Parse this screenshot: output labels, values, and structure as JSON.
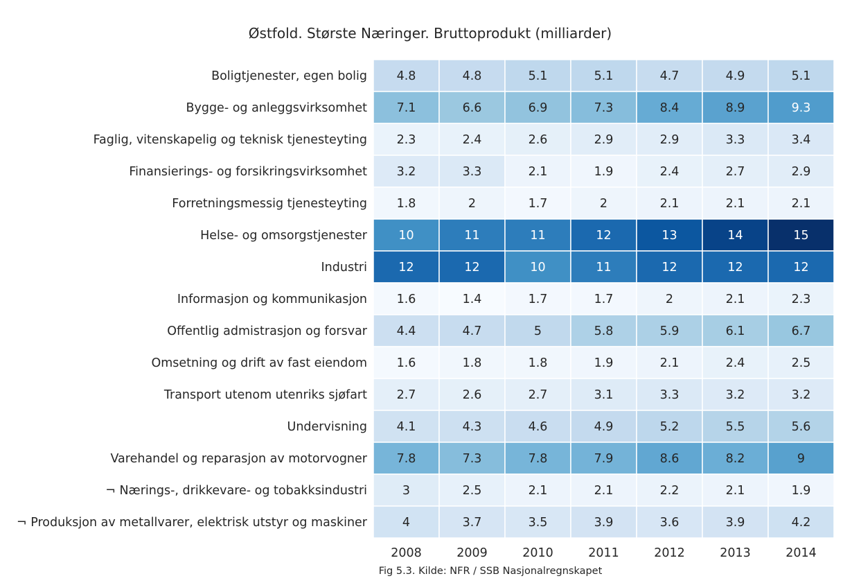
{
  "chart_data": {
    "type": "heatmap",
    "title": "Østfold. Største Næringer. Bruttoprodukt (milliarder)",
    "caption": "Fig 5.3. Kilde: NFR / SSB Nasjonalregnskapet",
    "colormap": "Blues",
    "vmin": 1.4,
    "vmax": 15,
    "columns": [
      "2008",
      "2009",
      "2010",
      "2011",
      "2012",
      "2013",
      "2014"
    ],
    "rows": [
      "Boligtjenester, egen bolig",
      "Bygge- og anleggsvirksomhet",
      "Faglig, vitenskapelig og teknisk tjenesteyting",
      "Finansierings- og forsikringsvirksomhet",
      "Forretningsmessig tjenesteyting",
      "Helse- og omsorgstjenester",
      "Industri",
      "Informasjon og kommunikasjon",
      "Offentlig admistrasjon og forsvar",
      "Omsetning og drift av fast eiendom",
      "Transport utenom utenriks sjøfart",
      "Undervisning",
      "Varehandel og reparasjon av motorvogner",
      "¬ Nærings-, drikkevare- og tobakksindustri",
      "¬ Produksjon av metallvarer, elektrisk utstyr og maskiner"
    ],
    "values": [
      [
        4.8,
        4.8,
        5.1,
        5.1,
        4.7,
        4.9,
        5.1
      ],
      [
        7.1,
        6.6,
        6.9,
        7.3,
        8.4,
        8.9,
        9.3
      ],
      [
        2.3,
        2.4,
        2.6,
        2.9,
        2.9,
        3.3,
        3.4
      ],
      [
        3.2,
        3.3,
        2.1,
        1.9,
        2.4,
        2.7,
        2.9
      ],
      [
        1.8,
        2,
        1.7,
        2,
        2.1,
        2.1,
        2.1
      ],
      [
        10,
        11,
        11,
        12,
        13,
        14,
        15
      ],
      [
        12,
        12,
        10,
        11,
        12,
        12,
        12
      ],
      [
        1.6,
        1.4,
        1.7,
        1.7,
        2,
        2.1,
        2.3
      ],
      [
        4.4,
        4.7,
        5,
        5.8,
        5.9,
        6.1,
        6.7
      ],
      [
        1.6,
        1.8,
        1.8,
        1.9,
        2.1,
        2.4,
        2.5
      ],
      [
        2.7,
        2.6,
        2.7,
        3.1,
        3.3,
        3.2,
        3.2
      ],
      [
        4.1,
        4.3,
        4.6,
        4.9,
        5.2,
        5.5,
        5.6
      ],
      [
        7.8,
        7.3,
        7.8,
        7.9,
        8.6,
        8.2,
        9
      ],
      [
        3,
        2.5,
        2.1,
        2.1,
        2.2,
        2.1,
        1.9
      ],
      [
        4,
        3.7,
        3.5,
        3.9,
        3.6,
        3.9,
        4.2
      ]
    ]
  }
}
